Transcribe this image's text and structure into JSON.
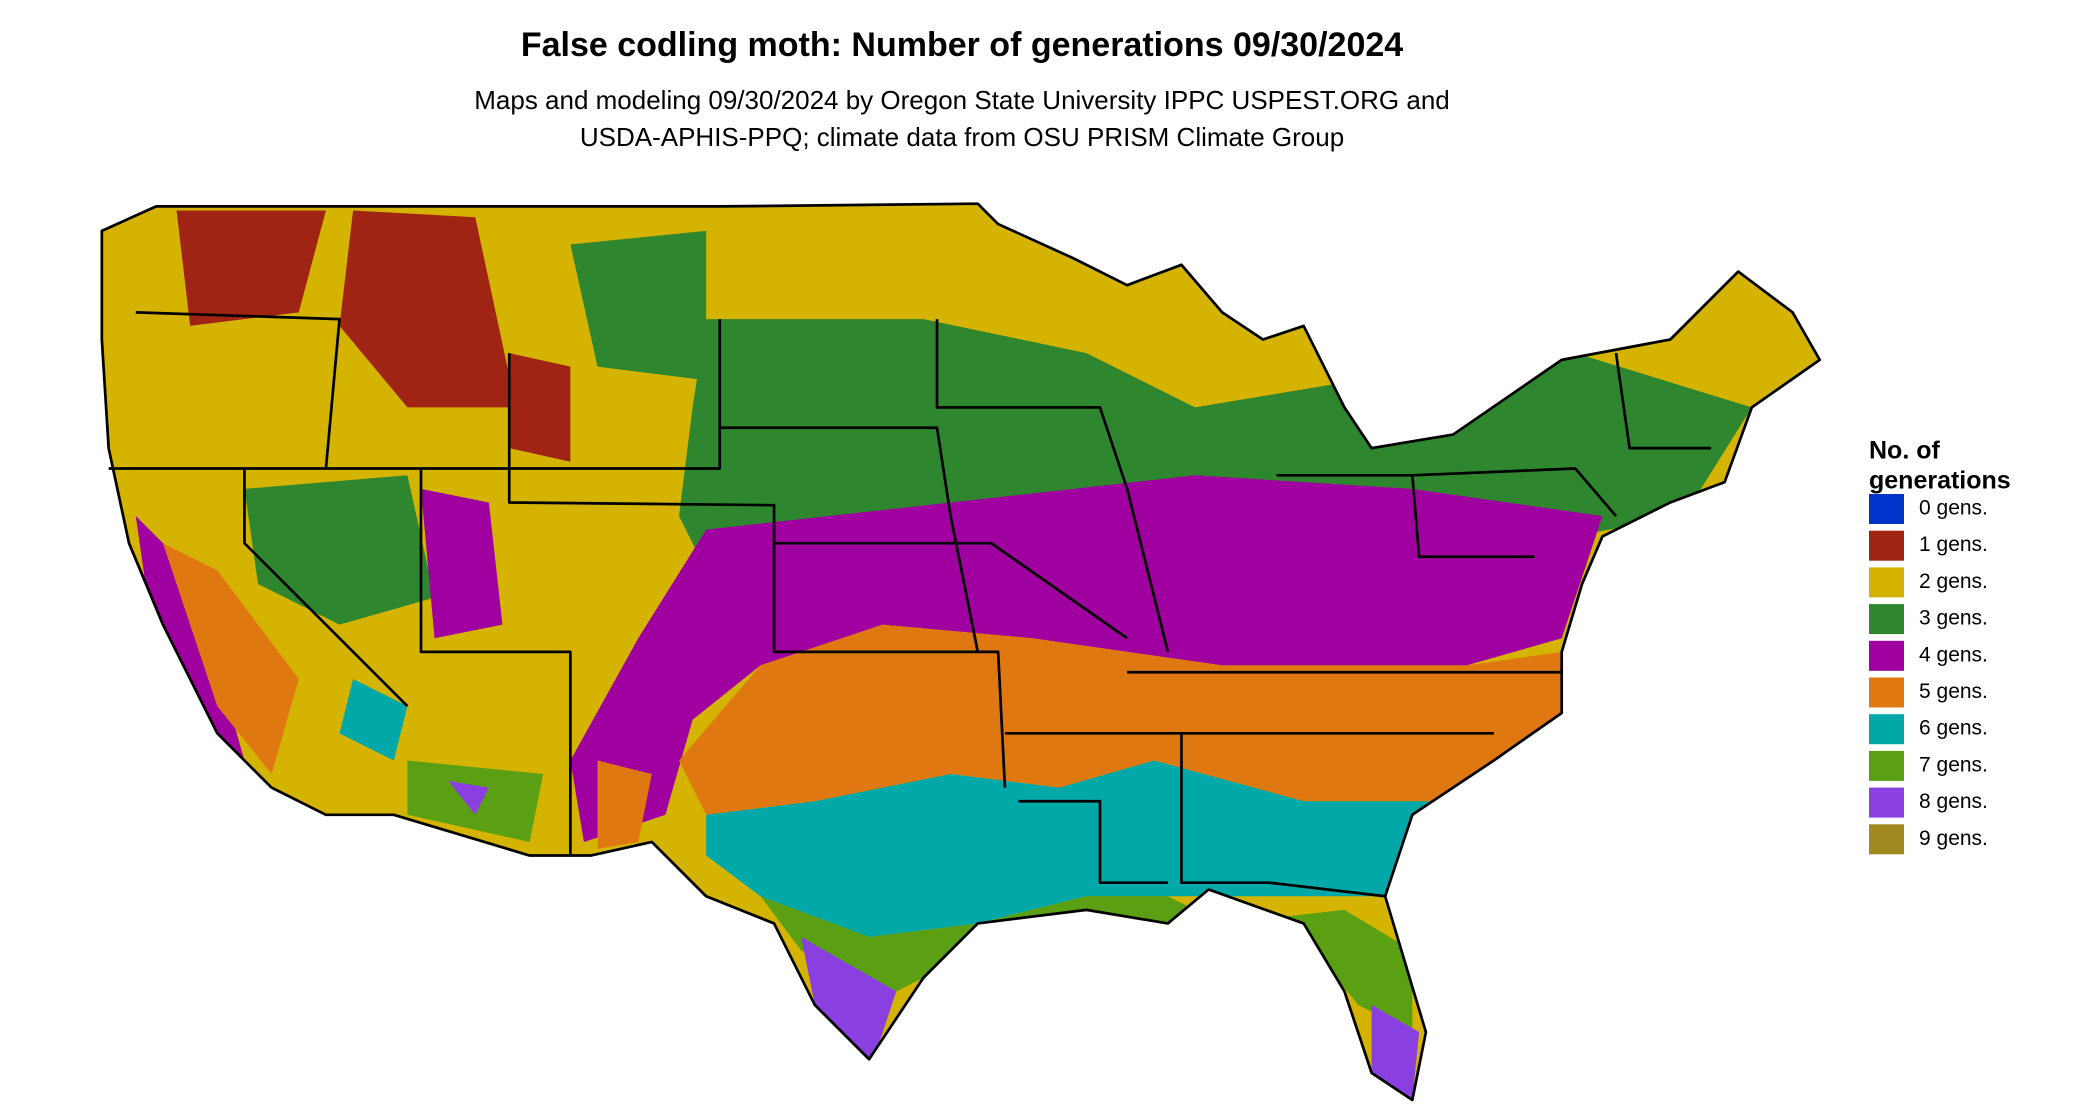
{
  "header": {
    "title": "False codling moth: Number of generations 09/30/2024",
    "subtitle": [
      "Maps and modeling 09/30/2024 by Oregon State University IPPC USPEST.ORG and",
      "USDA-APHIS-PPQ; climate data from OSU PRISM Climate Group"
    ]
  },
  "legend": {
    "title": [
      "No. of",
      "generations"
    ],
    "items": [
      {
        "label": "0 gens.",
        "color": "#0033cc"
      },
      {
        "label": "1 gens.",
        "color": "#a02414"
      },
      {
        "label": "2 gens.",
        "color": "#d4b400"
      },
      {
        "label": "3 gens.",
        "color": "#2e862e"
      },
      {
        "label": "4 gens.",
        "color": "#a000a0"
      },
      {
        "label": "5 gens.",
        "color": "#e07812"
      },
      {
        "label": "6 gens.",
        "color": "#00a8a8"
      },
      {
        "label": "7 gens.",
        "color": "#5aa012"
      },
      {
        "label": "8 gens.",
        "color": "#8a40e0"
      },
      {
        "label": "9 gens.",
        "color": "#a08a20"
      }
    ]
  }
}
